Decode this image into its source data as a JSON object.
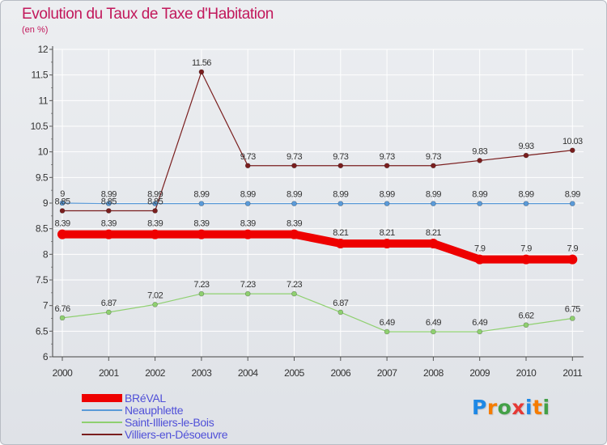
{
  "title": "Evolution du Taux de Taxe d'Habitation",
  "subtitle": "(en %)",
  "logo": {
    "letters": [
      "P",
      "r",
      "o",
      "x",
      "i",
      "t",
      "i"
    ],
    "colors": [
      "#1e88e5",
      "#f57c00",
      "#43a047",
      "#e53935",
      "#1e88e5",
      "#f57c00",
      "#43a047"
    ]
  },
  "chart_data": {
    "type": "line",
    "x": [
      "2000",
      "2001",
      "2002",
      "2003",
      "2004",
      "2005",
      "2006",
      "2007",
      "2008",
      "2009",
      "2010",
      "2011"
    ],
    "ylim": [
      6,
      12
    ],
    "yticks": [
      "6",
      "6.5",
      "7",
      "7.5",
      "8",
      "8.5",
      "9",
      "9.5",
      "10",
      "10.5",
      "11",
      "11.5",
      "12"
    ],
    "grid": true,
    "legend": "bottom-left",
    "series": [
      {
        "name": "Villiers-en-Désoeuvre",
        "color": "#7a1e1e",
        "width": 1.2,
        "marker": 3,
        "values": [
          8.85,
          8.85,
          8.85,
          11.56,
          9.73,
          9.73,
          9.73,
          9.73,
          9.73,
          9.83,
          9.93,
          10.03
        ],
        "labels": [
          "8.85",
          "8.85",
          "8.85",
          "11.56",
          "9.73",
          "9.73",
          "9.73",
          "9.73",
          "9.73",
          "9.83",
          "9.93",
          "10.03"
        ]
      },
      {
        "name": "Neauphlette",
        "color": "#5a9ad8",
        "width": 1.2,
        "marker": 3,
        "values": [
          9,
          8.99,
          8.99,
          8.99,
          8.99,
          8.99,
          8.99,
          8.99,
          8.99,
          8.99,
          8.99,
          8.99
        ],
        "labels": [
          "9",
          "8.99",
          "8.99",
          "8.99",
          "8.99",
          "8.99",
          "8.99",
          "8.99",
          "8.99",
          "8.99",
          "8.99",
          "8.99"
        ]
      },
      {
        "name": "Saint-Illiers-le-Bois",
        "color": "#8fd070",
        "width": 1.2,
        "marker": 3,
        "values": [
          6.76,
          6.87,
          7.02,
          7.23,
          7.23,
          7.23,
          6.87,
          6.49,
          6.49,
          6.49,
          6.62,
          6.75
        ],
        "labels": [
          "6.76",
          "6.87",
          "7.02",
          "7.23",
          "7.23",
          "7.23",
          "6.87",
          "6.49",
          "6.49",
          "6.49",
          "6.62",
          "6.75"
        ]
      },
      {
        "name": "BRéVAL",
        "color": "#ee0000",
        "width": 10,
        "marker": 6,
        "values": [
          8.39,
          8.39,
          8.39,
          8.39,
          8.39,
          8.39,
          8.21,
          8.21,
          8.21,
          7.9,
          7.9,
          7.9
        ],
        "labels": [
          "8.39",
          "8.39",
          "8.39",
          "8.39",
          "8.39",
          "8.39",
          "8.21",
          "8.21",
          "8.21",
          "7.9",
          "7.9",
          "7.9"
        ]
      }
    ],
    "legend_entries": [
      {
        "name": "BRéVAL",
        "color": "#ee0000",
        "width": 10
      },
      {
        "name": "Neauphlette",
        "color": "#5a9ad8",
        "width": 2
      },
      {
        "name": "Saint-Illiers-le-Bois",
        "color": "#8fd070",
        "width": 2
      },
      {
        "name": "Villiers-en-Désoeuvre",
        "color": "#7a1e1e",
        "width": 2
      }
    ]
  }
}
